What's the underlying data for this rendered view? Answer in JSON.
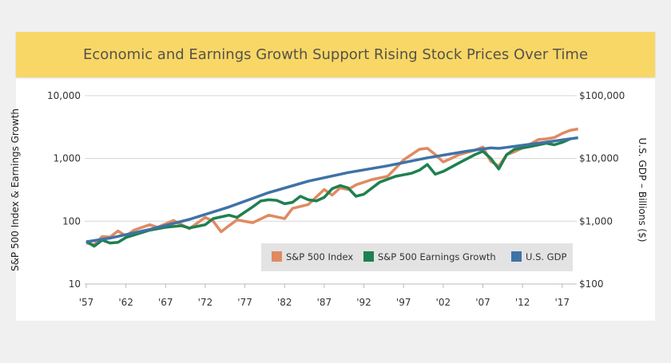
{
  "chart_data": {
    "type": "line",
    "title": "Economic and Earnings Growth Support Rising Stock Prices Over Time",
    "ylabel": "S&P 500 Index & Earnings Growth",
    "y2label": "U.S. GDP – Billions ($)",
    "yscale": "log",
    "ylim": [
      10,
      10000
    ],
    "y2lim": [
      100,
      100000
    ],
    "yticks": [
      "10",
      "100",
      "1,000",
      "10,000"
    ],
    "y2ticks": [
      "$100",
      "$1,000",
      "$10,000",
      "$100,000"
    ],
    "xticks": [
      "'57",
      "'62",
      "'67",
      "'72",
      "'77",
      "'82",
      "'87",
      "'92",
      "'97",
      "'02",
      "'07",
      "'12",
      "'17"
    ],
    "xlim": [
      1957,
      2019
    ],
    "grid": true,
    "legend_position": "bottom-right",
    "series": [
      {
        "name": "S&P 500 Index",
        "color": "#e08a62",
        "axis": "left",
        "x": [
          1957,
          1958,
          1959,
          1960,
          1961,
          1962,
          1963,
          1965,
          1966,
          1968,
          1970,
          1972,
          1973,
          1974,
          1975,
          1976,
          1978,
          1980,
          1982,
          1983,
          1985,
          1987,
          1988,
          1989,
          1990,
          1991,
          1993,
          1995,
          1996,
          1997,
          1998,
          1999,
          2000,
          2001,
          2002,
          2003,
          2004,
          2006,
          2007,
          2008,
          2009,
          2010,
          2011,
          2013,
          2014,
          2015,
          2016,
          2017,
          2018,
          2019
        ],
        "y": [
          45,
          42,
          57,
          56,
          70,
          58,
          72,
          88,
          80,
          103,
          76,
          115,
          100,
          68,
          85,
          105,
          95,
          125,
          110,
          160,
          185,
          320,
          260,
          340,
          320,
          380,
          460,
          520,
          700,
          950,
          1150,
          1400,
          1450,
          1150,
          880,
          1000,
          1150,
          1350,
          1520,
          900,
          750,
          1150,
          1280,
          1700,
          2000,
          2050,
          2150,
          2500,
          2800,
          2950
        ]
      },
      {
        "name": "S&P 500 Earnings Growth",
        "color": "#1f8050",
        "axis": "left",
        "x": [
          1957,
          1958,
          1959,
          1960,
          1961,
          1962,
          1965,
          1967,
          1969,
          1970,
          1972,
          1973,
          1975,
          1976,
          1978,
          1979,
          1980,
          1981,
          1982,
          1983,
          1984,
          1985,
          1986,
          1987,
          1988,
          1989,
          1990,
          1991,
          1992,
          1994,
          1996,
          1998,
          1999,
          2000,
          2001,
          2002,
          2004,
          2006,
          2007,
          2008,
          2009,
          2010,
          2011,
          2013,
          2015,
          2016,
          2017,
          2018
        ],
        "y": [
          48,
          40,
          50,
          45,
          46,
          55,
          72,
          80,
          85,
          78,
          88,
          110,
          125,
          115,
          170,
          210,
          220,
          215,
          190,
          200,
          250,
          220,
          210,
          240,
          330,
          370,
          340,
          250,
          270,
          420,
          520,
          580,
          650,
          800,
          560,
          620,
          850,
          1150,
          1300,
          1000,
          680,
          1150,
          1400,
          1550,
          1750,
          1650,
          1800,
          2050
        ]
      },
      {
        "name": "U.S. GDP",
        "color": "#3f72a6",
        "axis": "right",
        "x": [
          1957,
          1960,
          1965,
          1970,
          1975,
          1980,
          1985,
          1990,
          1995,
          2000,
          2005,
          2008,
          2009,
          2010,
          2015,
          2019
        ],
        "y": [
          470,
          540,
          740,
          1070,
          1690,
          2860,
          4340,
          5960,
          7640,
          10250,
          13040,
          14710,
          14450,
          15000,
          18220,
          21400
        ]
      }
    ]
  }
}
